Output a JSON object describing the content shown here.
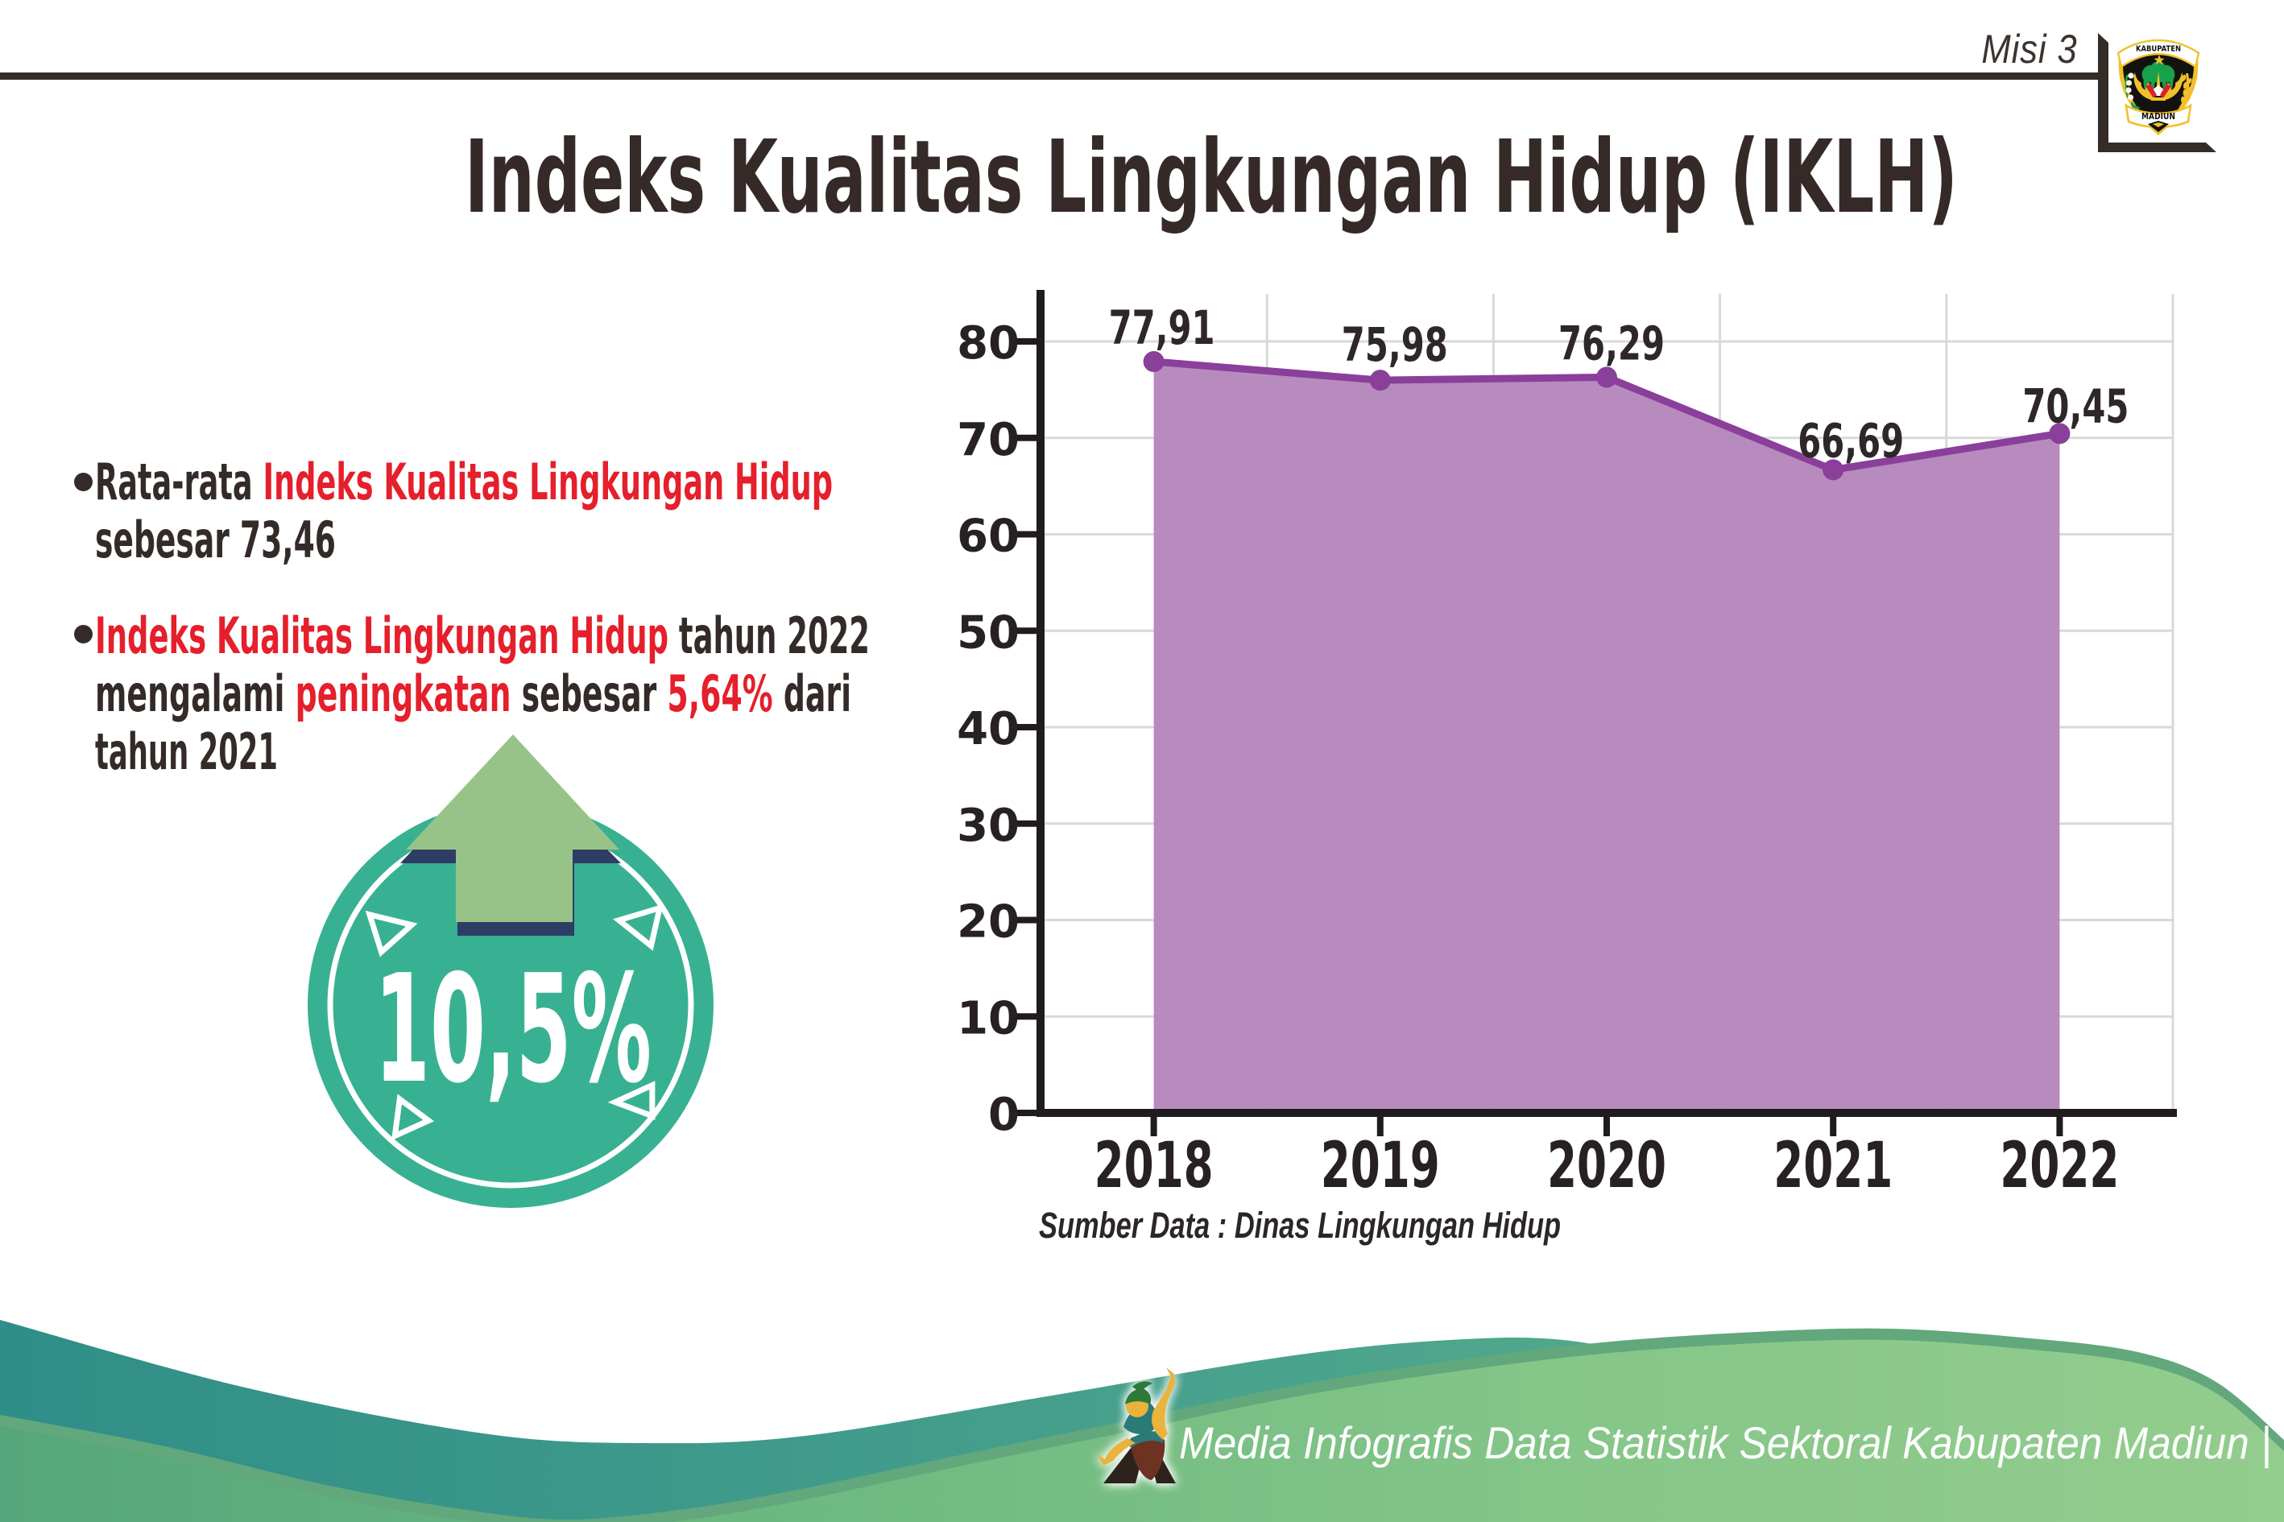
{
  "header": {
    "mission_label": "Misi 3",
    "crest": {
      "top_banner": "KABUPATEN",
      "bottom_banner": "MADIUN"
    }
  },
  "title": "Indeks Kualitas Lingkungan Hidup (IKLH)",
  "bullets": [
    {
      "lines": [
        {
          "segments": [
            {
              "text": "Rata-rata ",
              "style": "dark"
            },
            {
              "text": "Indeks Kualitas Lingkungan Hidup",
              "style": "red"
            }
          ]
        },
        {
          "segments": [
            {
              "text": "sebesar 73,46",
              "style": "dark"
            }
          ]
        }
      ]
    },
    {
      "lines": [
        {
          "segments": [
            {
              "text": "Indeks Kualitas Lingkungan Hidup",
              "style": "red"
            },
            {
              "text": " tahun 2022",
              "style": "dark"
            }
          ]
        },
        {
          "segments": [
            {
              "text": "mengalami ",
              "style": "dark"
            },
            {
              "text": "peningkatan",
              "style": "red"
            },
            {
              "text": " sebesar ",
              "style": "dark"
            },
            {
              "text": "5,64%",
              "style": "red"
            },
            {
              "text": " dari",
              "style": "dark"
            }
          ]
        },
        {
          "segments": [
            {
              "text": "tahun 2021",
              "style": "dark"
            }
          ]
        }
      ]
    }
  ],
  "badge": {
    "value": "10,5%",
    "circle_color": "#38b192",
    "arrow_color": "#98c388",
    "arrow_outline_color": "#2e3d66"
  },
  "chart_data": {
    "type": "area",
    "title": "",
    "xlabel": "",
    "ylabel": "",
    "categories": [
      "2018",
      "2019",
      "2020",
      "2021",
      "2022"
    ],
    "values": [
      77.91,
      75.98,
      76.29,
      66.69,
      70.45
    ],
    "value_labels": [
      "77,91",
      "75,98",
      "76,29",
      "66,69",
      "70,45"
    ],
    "y_ticks": [
      0,
      10,
      20,
      30,
      40,
      50,
      60,
      70,
      80
    ],
    "ylim": [
      0,
      85
    ],
    "grid": true,
    "legend": false,
    "fill_color": "#b587bb",
    "line_color": "#8a3f9b",
    "marker_color": "#8a3f9b",
    "source_note": "Sumber Data : Dinas Lingkungan Hidup"
  },
  "footer": {
    "text": "Media Infografis Data Statistik Sektoral Kabupaten Madiun |"
  }
}
